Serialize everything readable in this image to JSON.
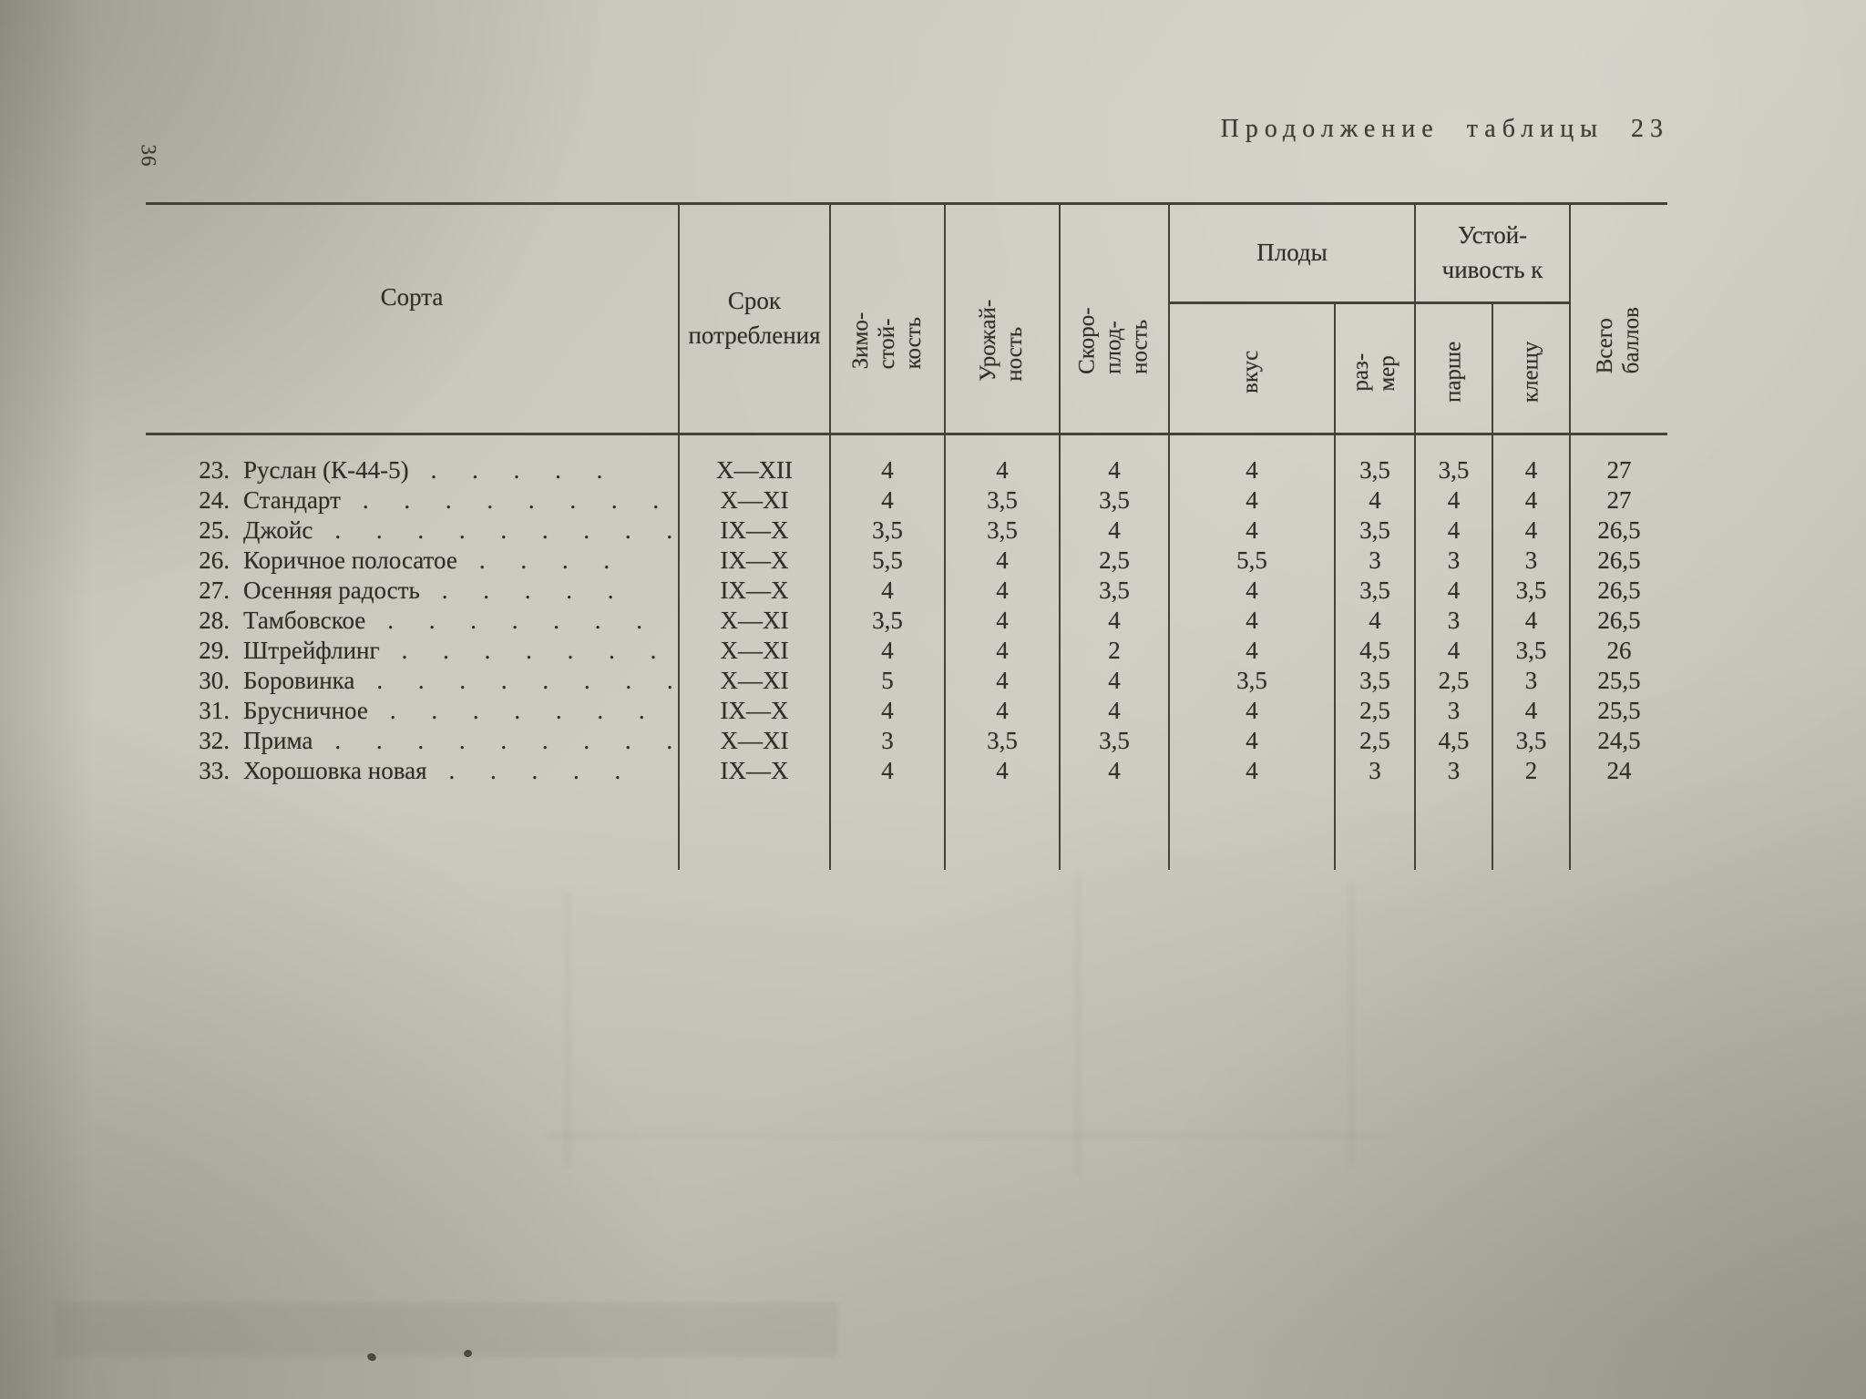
{
  "page": {
    "title": "Продолжение таблицы 23",
    "page_number": "36"
  },
  "table": {
    "headers": {
      "sorta": "Сорта",
      "srok": "Срок\nпотребления",
      "zimostojkost": "Зимо-\nстой-\nкость",
      "urozhajnost": "Урожай-\nность",
      "skoroplodnost": "Скоро-\nплод-\nность",
      "plody_group": "Плоды",
      "vkus": "вкус",
      "razmer": "раз-\nмер",
      "ustojchivost_group": "Устой-\nчивость к",
      "parshe": "парше",
      "kleshchu": "клещу",
      "vsego_ballov": "Всего\nбаллов"
    },
    "rows": [
      {
        "num": "23.",
        "name": "Руслан  (К-44-5)",
        "dots": ". . . . .",
        "srok": "X—XII",
        "zimo": "4",
        "urozh": "4",
        "skoro": "4",
        "vkus": "4",
        "razmer": "3,5",
        "parshe": "3,5",
        "kleshchu": "4",
        "vsego": "27"
      },
      {
        "num": "24.",
        "name": "Стандарт",
        "dots": ". . . . . . . .",
        "srok": "X—XI",
        "zimo": "4",
        "urozh": "3,5",
        "skoro": "3,5",
        "vkus": "4",
        "razmer": "4",
        "parshe": "4",
        "kleshchu": "4",
        "vsego": "27"
      },
      {
        "num": "25.",
        "name": "Джойс",
        "dots": ". . . . . . . . .",
        "srok": "IX—X",
        "zimo": "3,5",
        "urozh": "3,5",
        "skoro": "4",
        "vkus": "4",
        "razmer": "3,5",
        "parshe": "4",
        "kleshchu": "4",
        "vsego": "26,5"
      },
      {
        "num": "26.",
        "name": "Коричное полосатое",
        "dots": ". . . .",
        "srok": "IX—X",
        "zimo": "5,5",
        "urozh": "4",
        "skoro": "2,5",
        "vkus": "5,5",
        "razmer": "3",
        "parshe": "3",
        "kleshchu": "3",
        "vsego": "26,5"
      },
      {
        "num": "27.",
        "name": "Осенняя радость",
        "dots": ". . . . .",
        "srok": "IX—X",
        "zimo": "4",
        "urozh": "4",
        "skoro": "3,5",
        "vkus": "4",
        "razmer": "3,5",
        "parshe": "4",
        "kleshchu": "3,5",
        "vsego": "26,5"
      },
      {
        "num": "28.",
        "name": "Тамбовское",
        "dots": ". . . . . . .",
        "srok": "X—XI",
        "zimo": "3,5",
        "urozh": "4",
        "skoro": "4",
        "vkus": "4",
        "razmer": "4",
        "parshe": "3",
        "kleshchu": "4",
        "vsego": "26,5"
      },
      {
        "num": "29.",
        "name": "Штрейфлинг",
        "dots": ". . . . . . .",
        "srok": "X—XI",
        "zimo": "4",
        "urozh": "4",
        "skoro": "2",
        "vkus": "4",
        "razmer": "4,5",
        "parshe": "4",
        "kleshchu": "3,5",
        "vsego": "26"
      },
      {
        "num": "30.",
        "name": "Боровинка",
        "dots": ". . . . . . . .",
        "srok": "X—XI",
        "zimo": "5",
        "urozh": "4",
        "skoro": "4",
        "vkus": "3,5",
        "razmer": "3,5",
        "parshe": "2,5",
        "kleshchu": "3",
        "vsego": "25,5"
      },
      {
        "num": "31.",
        "name": "Брусничное",
        "dots": ". . . . . . .",
        "srok": "IX—X",
        "zimo": "4",
        "urozh": "4",
        "skoro": "4",
        "vkus": "4",
        "razmer": "2,5",
        "parshe": "3",
        "kleshchu": "4",
        "vsego": "25,5"
      },
      {
        "num": "32.",
        "name": "Прима",
        "dots": ". . . . . . . . .",
        "srok": "X—XI",
        "zimo": "3",
        "urozh": "3,5",
        "skoro": "3,5",
        "vkus": "4",
        "razmer": "2,5",
        "parshe": "4,5",
        "kleshchu": "3,5",
        "vsego": "24,5"
      },
      {
        "num": "33.",
        "name": "Хорошовка новая",
        "dots": ". . . . .",
        "srok": "IX—X",
        "zimo": "4",
        "urozh": "4",
        "skoro": "4",
        "vkus": "4",
        "razmer": "3",
        "parshe": "3",
        "kleshchu": "2",
        "vsego": "24"
      }
    ]
  }
}
